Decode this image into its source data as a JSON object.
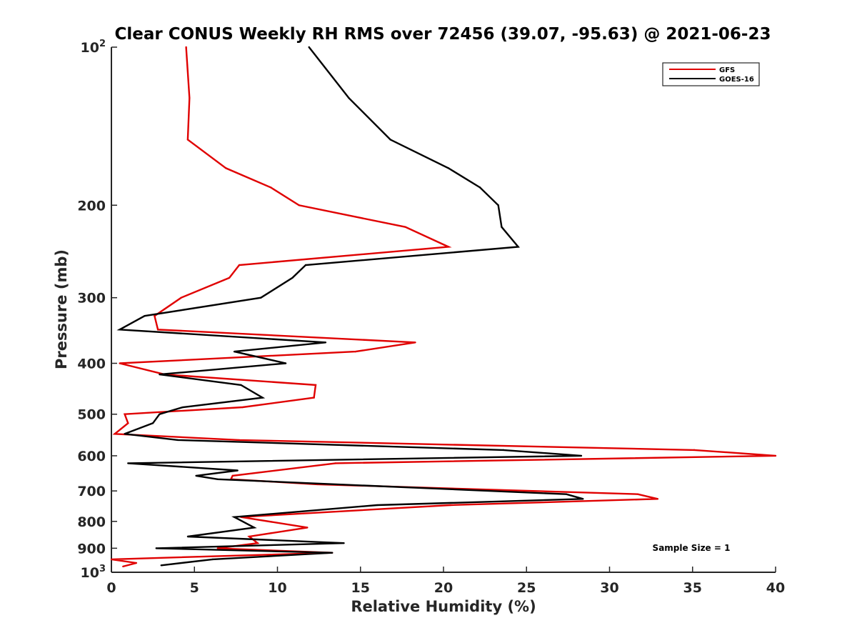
{
  "chart_data": {
    "type": "line",
    "title": "Clear CONUS Weekly RH RMS over 72456 (39.07, -95.63) @ 2021-06-23",
    "xlabel": "Relative Humidity (%)",
    "ylabel": "Pressure (mb)",
    "xlim": [
      0,
      40
    ],
    "ylim": [
      100,
      1000
    ],
    "yscale": "log",
    "yreverse": true,
    "x_ticks": [
      "0",
      "5",
      "10",
      "15",
      "20",
      "25",
      "30",
      "35",
      "40"
    ],
    "y_ticks": [
      {
        "value": 100,
        "label": "10",
        "sup": "2"
      },
      {
        "value": 200,
        "label": "200"
      },
      {
        "value": 300,
        "label": "300"
      },
      {
        "value": 400,
        "label": "400"
      },
      {
        "value": 500,
        "label": "500"
      },
      {
        "value": 600,
        "label": "600"
      },
      {
        "value": 700,
        "label": "700"
      },
      {
        "value": 800,
        "label": "800"
      },
      {
        "value": 900,
        "label": "900"
      },
      {
        "value": 1000,
        "label": "10",
        "sup": "3"
      }
    ],
    "legend_position": "top-right",
    "annotation": "Sample Size = 1",
    "series": [
      {
        "name": "GFS",
        "color": "#e00000",
        "points": [
          [
            4.5,
            100
          ],
          [
            4.7,
            125
          ],
          [
            4.6,
            150
          ],
          [
            6.9,
            170
          ],
          [
            9.6,
            185
          ],
          [
            11.3,
            200
          ],
          [
            17.7,
            220
          ],
          [
            20.3,
            240
          ],
          [
            7.7,
            260
          ],
          [
            7.1,
            275
          ],
          [
            4.2,
            300
          ],
          [
            2.6,
            325
          ],
          [
            2.8,
            345
          ],
          [
            18.3,
            365
          ],
          [
            14.7,
            380
          ],
          [
            0.5,
            400
          ],
          [
            3.2,
            420
          ],
          [
            12.3,
            440
          ],
          [
            12.2,
            465
          ],
          [
            7.9,
            485
          ],
          [
            0.8,
            500
          ],
          [
            1.0,
            520
          ],
          [
            0.2,
            545
          ],
          [
            7.7,
            560
          ],
          [
            35.1,
            585
          ],
          [
            40.0,
            600
          ],
          [
            13.5,
            620
          ],
          [
            7.3,
            655
          ],
          [
            7.2,
            665
          ],
          [
            12.4,
            680
          ],
          [
            31.7,
            710
          ],
          [
            32.9,
            725
          ],
          [
            20.4,
            745
          ],
          [
            7.8,
            785
          ],
          [
            11.8,
            822
          ],
          [
            8.3,
            855
          ],
          [
            8.8,
            880
          ],
          [
            6.4,
            900
          ],
          [
            13.3,
            918
          ],
          [
            0.0,
            945
          ],
          [
            1.5,
            960
          ],
          [
            0.7,
            975
          ]
        ]
      },
      {
        "name": "GOES-16",
        "color": "#000000",
        "points": [
          [
            11.9,
            100
          ],
          [
            14.3,
            125
          ],
          [
            16.8,
            150
          ],
          [
            20.3,
            170
          ],
          [
            22.2,
            185
          ],
          [
            23.3,
            200
          ],
          [
            23.5,
            220
          ],
          [
            24.5,
            240
          ],
          [
            11.7,
            260
          ],
          [
            10.9,
            275
          ],
          [
            9.0,
            300
          ],
          [
            2.0,
            325
          ],
          [
            0.5,
            345
          ],
          [
            12.9,
            365
          ],
          [
            7.4,
            380
          ],
          [
            10.5,
            400
          ],
          [
            2.9,
            420
          ],
          [
            7.8,
            440
          ],
          [
            9.1,
            465
          ],
          [
            4.3,
            485
          ],
          [
            2.9,
            500
          ],
          [
            2.5,
            520
          ],
          [
            0.8,
            545
          ],
          [
            4.0,
            560
          ],
          [
            23.6,
            585
          ],
          [
            28.3,
            600
          ],
          [
            1.0,
            620
          ],
          [
            7.6,
            640
          ],
          [
            5.1,
            655
          ],
          [
            6.4,
            665
          ],
          [
            27.4,
            710
          ],
          [
            28.4,
            725
          ],
          [
            16.0,
            745
          ],
          [
            7.4,
            785
          ],
          [
            8.6,
            822
          ],
          [
            4.6,
            855
          ],
          [
            14.0,
            880
          ],
          [
            2.7,
            900
          ],
          [
            13.3,
            918
          ],
          [
            6.1,
            945
          ],
          [
            3.0,
            970
          ]
        ]
      }
    ]
  }
}
